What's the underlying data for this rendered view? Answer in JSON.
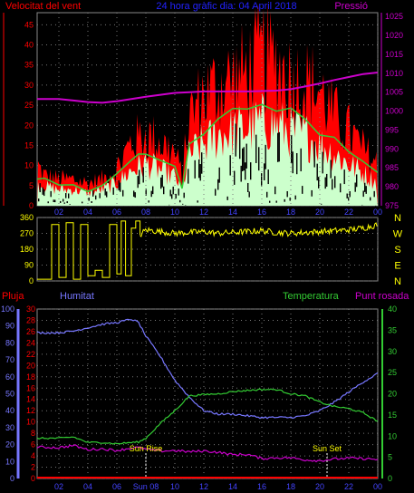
{
  "header": {
    "left": "Velocitat del vent",
    "center": "24 hora gràfic dia: 04 April 2018",
    "right": "Pressió"
  },
  "colors": {
    "wind_speed": "#ff0000",
    "wind_avg": "#33cc33",
    "wind_low": "#ccffcc",
    "pressure": "#cc00cc",
    "direction": "#ffff00",
    "humidity": "#7777ff",
    "temperature": "#33cc33",
    "dewpoint": "#cc00cc",
    "rain": "#ff0000"
  },
  "x_ticks": [
    "02",
    "04",
    "06",
    "08",
    "10",
    "12",
    "14",
    "16",
    "18",
    "20",
    "22",
    "00"
  ],
  "x_ticks_bottom": [
    "02",
    "04",
    "06",
    "Sun 08",
    "10",
    "12",
    "14",
    "16",
    "18",
    "20",
    "22",
    "00"
  ],
  "compass": [
    "N",
    "W",
    "S",
    "E",
    "N"
  ],
  "bottom_labels": {
    "rain": "Pluja",
    "humidity": "Humitat",
    "temperature": "Temperatura",
    "dewpoint": "Punt rosada"
  },
  "sun": {
    "rise_label": "Sun Rise",
    "rise_hour": 8.0,
    "set_label": "Sun Set",
    "set_hour": 20.5
  },
  "chart_data": [
    {
      "type": "line",
      "x_unit": "hour",
      "x_range": [
        0.5,
        24
      ],
      "left_axis": {
        "ticks": [
          0,
          5,
          10,
          15,
          20,
          25,
          30,
          35,
          40,
          45
        ],
        "ylim": [
          0,
          48
        ]
      },
      "right_axis": {
        "ticks": [
          975,
          980,
          985,
          990,
          995,
          1000,
          1005,
          1010,
          1015,
          1020,
          1025
        ],
        "ylim": [
          975,
          1026
        ]
      },
      "series": [
        {
          "name": "Velocitat del vent",
          "axis": "left",
          "x": [
            0.5,
            1,
            2,
            3,
            4,
            5,
            6,
            7,
            7.5,
            8,
            9,
            10,
            10.5,
            11,
            12,
            13,
            14,
            15,
            16,
            17,
            18,
            19,
            20,
            21,
            22,
            23,
            24
          ],
          "values": [
            11,
            8,
            7,
            7,
            6,
            7,
            10,
            17,
            18,
            19,
            17,
            14,
            8,
            24,
            30,
            32,
            34,
            36,
            40,
            38,
            34,
            33,
            31,
            24,
            20,
            15,
            11
          ]
        },
        {
          "axis": "left",
          "x": [
            0.5,
            1,
            2,
            3,
            4,
            5,
            6,
            7,
            7.5,
            8,
            9,
            10,
            10.5,
            11,
            12,
            13,
            14,
            15,
            16,
            17,
            18,
            19,
            20,
            21,
            22,
            23,
            24
          ],
          "values": [
            7,
            6,
            5,
            5,
            4,
            5,
            7,
            11,
            12,
            13,
            11,
            9,
            5,
            16,
            19,
            22,
            23,
            24,
            26,
            25,
            23,
            22,
            19,
            16,
            13,
            10,
            7
          ]
        },
        {
          "axis": "left",
          "x": [
            0.5,
            1,
            2,
            3,
            4,
            5,
            6,
            7,
            7.5,
            8,
            9,
            10,
            10.5,
            11,
            12,
            13,
            14,
            15,
            16,
            17,
            18,
            19,
            20,
            21,
            22,
            23,
            24
          ],
          "values": [
            5,
            4,
            3,
            3,
            3,
            4,
            5,
            8,
            9,
            9,
            8,
            6,
            1,
            11,
            14,
            16,
            17,
            18,
            19,
            18,
            16,
            15,
            13,
            11,
            8,
            6,
            3
          ]
        },
        {
          "name": "Pressió",
          "axis": "right",
          "x": [
            0.5,
            2,
            3,
            4,
            5,
            6,
            7,
            8,
            9,
            10,
            11,
            12,
            13,
            14,
            15,
            16,
            17,
            18,
            19,
            20,
            21,
            22,
            23,
            24
          ],
          "values": [
            1003.2,
            1003.2,
            1002.8,
            1002.4,
            1002.2,
            1002.6,
            1003.2,
            1003.8,
            1004.3,
            1004.8,
            1005.0,
            1005.2,
            1005.2,
            1005.2,
            1005.2,
            1005.3,
            1005.4,
            1005.8,
            1006.5,
            1007.3,
            1008.2,
            1009.0,
            1009.8,
            1010.2
          ]
        }
      ]
    },
    {
      "type": "line",
      "x_unit": "hour",
      "x_range": [
        0.5,
        24
      ],
      "left_axis": {
        "ticks": [
          0,
          90,
          180,
          270,
          360
        ],
        "ylim": [
          0,
          360
        ]
      },
      "right_axis": {
        "labels": [
          "N",
          "W",
          "S",
          "E",
          "N"
        ]
      },
      "series": [
        {
          "axis": "left",
          "x": [
            0.5,
            1.5,
            2,
            2.5,
            3,
            3.5,
            4,
            4.5,
            5,
            5.5,
            6,
            6.3,
            6.6,
            7,
            7.3,
            7.6,
            8,
            9,
            10,
            11,
            12,
            13,
            14,
            15,
            16,
            17,
            18,
            19,
            20,
            21,
            22,
            23,
            24
          ],
          "values": [
            10,
            320,
            20,
            330,
            10,
            320,
            30,
            60,
            20,
            320,
            40,
            340,
            30,
            300,
            340,
            260,
            290,
            280,
            270,
            275,
            280,
            270,
            275,
            280,
            285,
            275,
            270,
            275,
            280,
            285,
            290,
            300,
            320
          ]
        }
      ]
    },
    {
      "type": "line",
      "x_unit": "hour",
      "x_range": [
        0.5,
        24
      ],
      "axes": {
        "humitat": {
          "ticks": [
            0,
            10,
            20,
            30,
            40,
            50,
            60,
            70,
            80,
            90,
            100
          ],
          "ylim": [
            0,
            100
          ]
        },
        "rain": {
          "ticks": [
            0,
            2,
            4,
            6,
            8,
            10,
            12,
            14,
            16,
            18,
            20,
            22,
            24,
            26,
            28,
            30
          ],
          "ylim": [
            0,
            30
          ]
        },
        "temperature": {
          "ticks": [
            0,
            5,
            10,
            15,
            20,
            25,
            30,
            35,
            40
          ],
          "ylim": [
            0,
            40
          ]
        }
      },
      "series": [
        {
          "name": "Humitat",
          "axis": "humitat",
          "x": [
            0.5,
            2,
            3,
            4,
            5,
            6,
            7,
            7.5,
            8,
            9,
            10,
            11,
            12,
            13,
            14,
            15,
            16,
            17,
            18,
            19,
            20,
            21,
            22,
            23,
            24
          ],
          "values": [
            86,
            86,
            87,
            89,
            91,
            92,
            94,
            92,
            84,
            72,
            58,
            48,
            40,
            38,
            38,
            37,
            36,
            36,
            36,
            37,
            40,
            45,
            51,
            57,
            62
          ]
        },
        {
          "name": "Temperatura",
          "axis": "temperature",
          "x": [
            0.5,
            2,
            3,
            4,
            5,
            6,
            7,
            7.5,
            8,
            9,
            10,
            11,
            12,
            13,
            14,
            15,
            16,
            17,
            18,
            19,
            20,
            21,
            22,
            23,
            24
          ],
          "values": [
            9.5,
            9.5,
            9.8,
            8.5,
            8.5,
            8.2,
            8.5,
            8.6,
            9.5,
            13,
            16,
            19.5,
            19.8,
            20,
            20.5,
            20.8,
            21,
            21,
            20,
            19.5,
            18,
            17,
            16.5,
            15.5,
            13.5
          ]
        },
        {
          "name": "Punt rosada",
          "axis": "temperature",
          "x": [
            0.5,
            2,
            3,
            4,
            5,
            6,
            7,
            7.5,
            8,
            9,
            10,
            11,
            12,
            13,
            14,
            15,
            16,
            17,
            18,
            19,
            20,
            21,
            22,
            23,
            24
          ],
          "values": [
            7.4,
            7.3,
            7.8,
            6.8,
            7.0,
            6.6,
            7.2,
            7.3,
            6.9,
            6.5,
            6.6,
            6.3,
            6.5,
            6.2,
            5.6,
            5.7,
            4.7,
            4.9,
            4.9,
            4.4,
            4.2,
            4.6,
            4.8,
            4.7,
            4.5
          ]
        },
        {
          "name": "Pluja",
          "axis": "rain",
          "x": [
            0.5,
            24
          ],
          "values": [
            0,
            0
          ]
        }
      ]
    }
  ]
}
